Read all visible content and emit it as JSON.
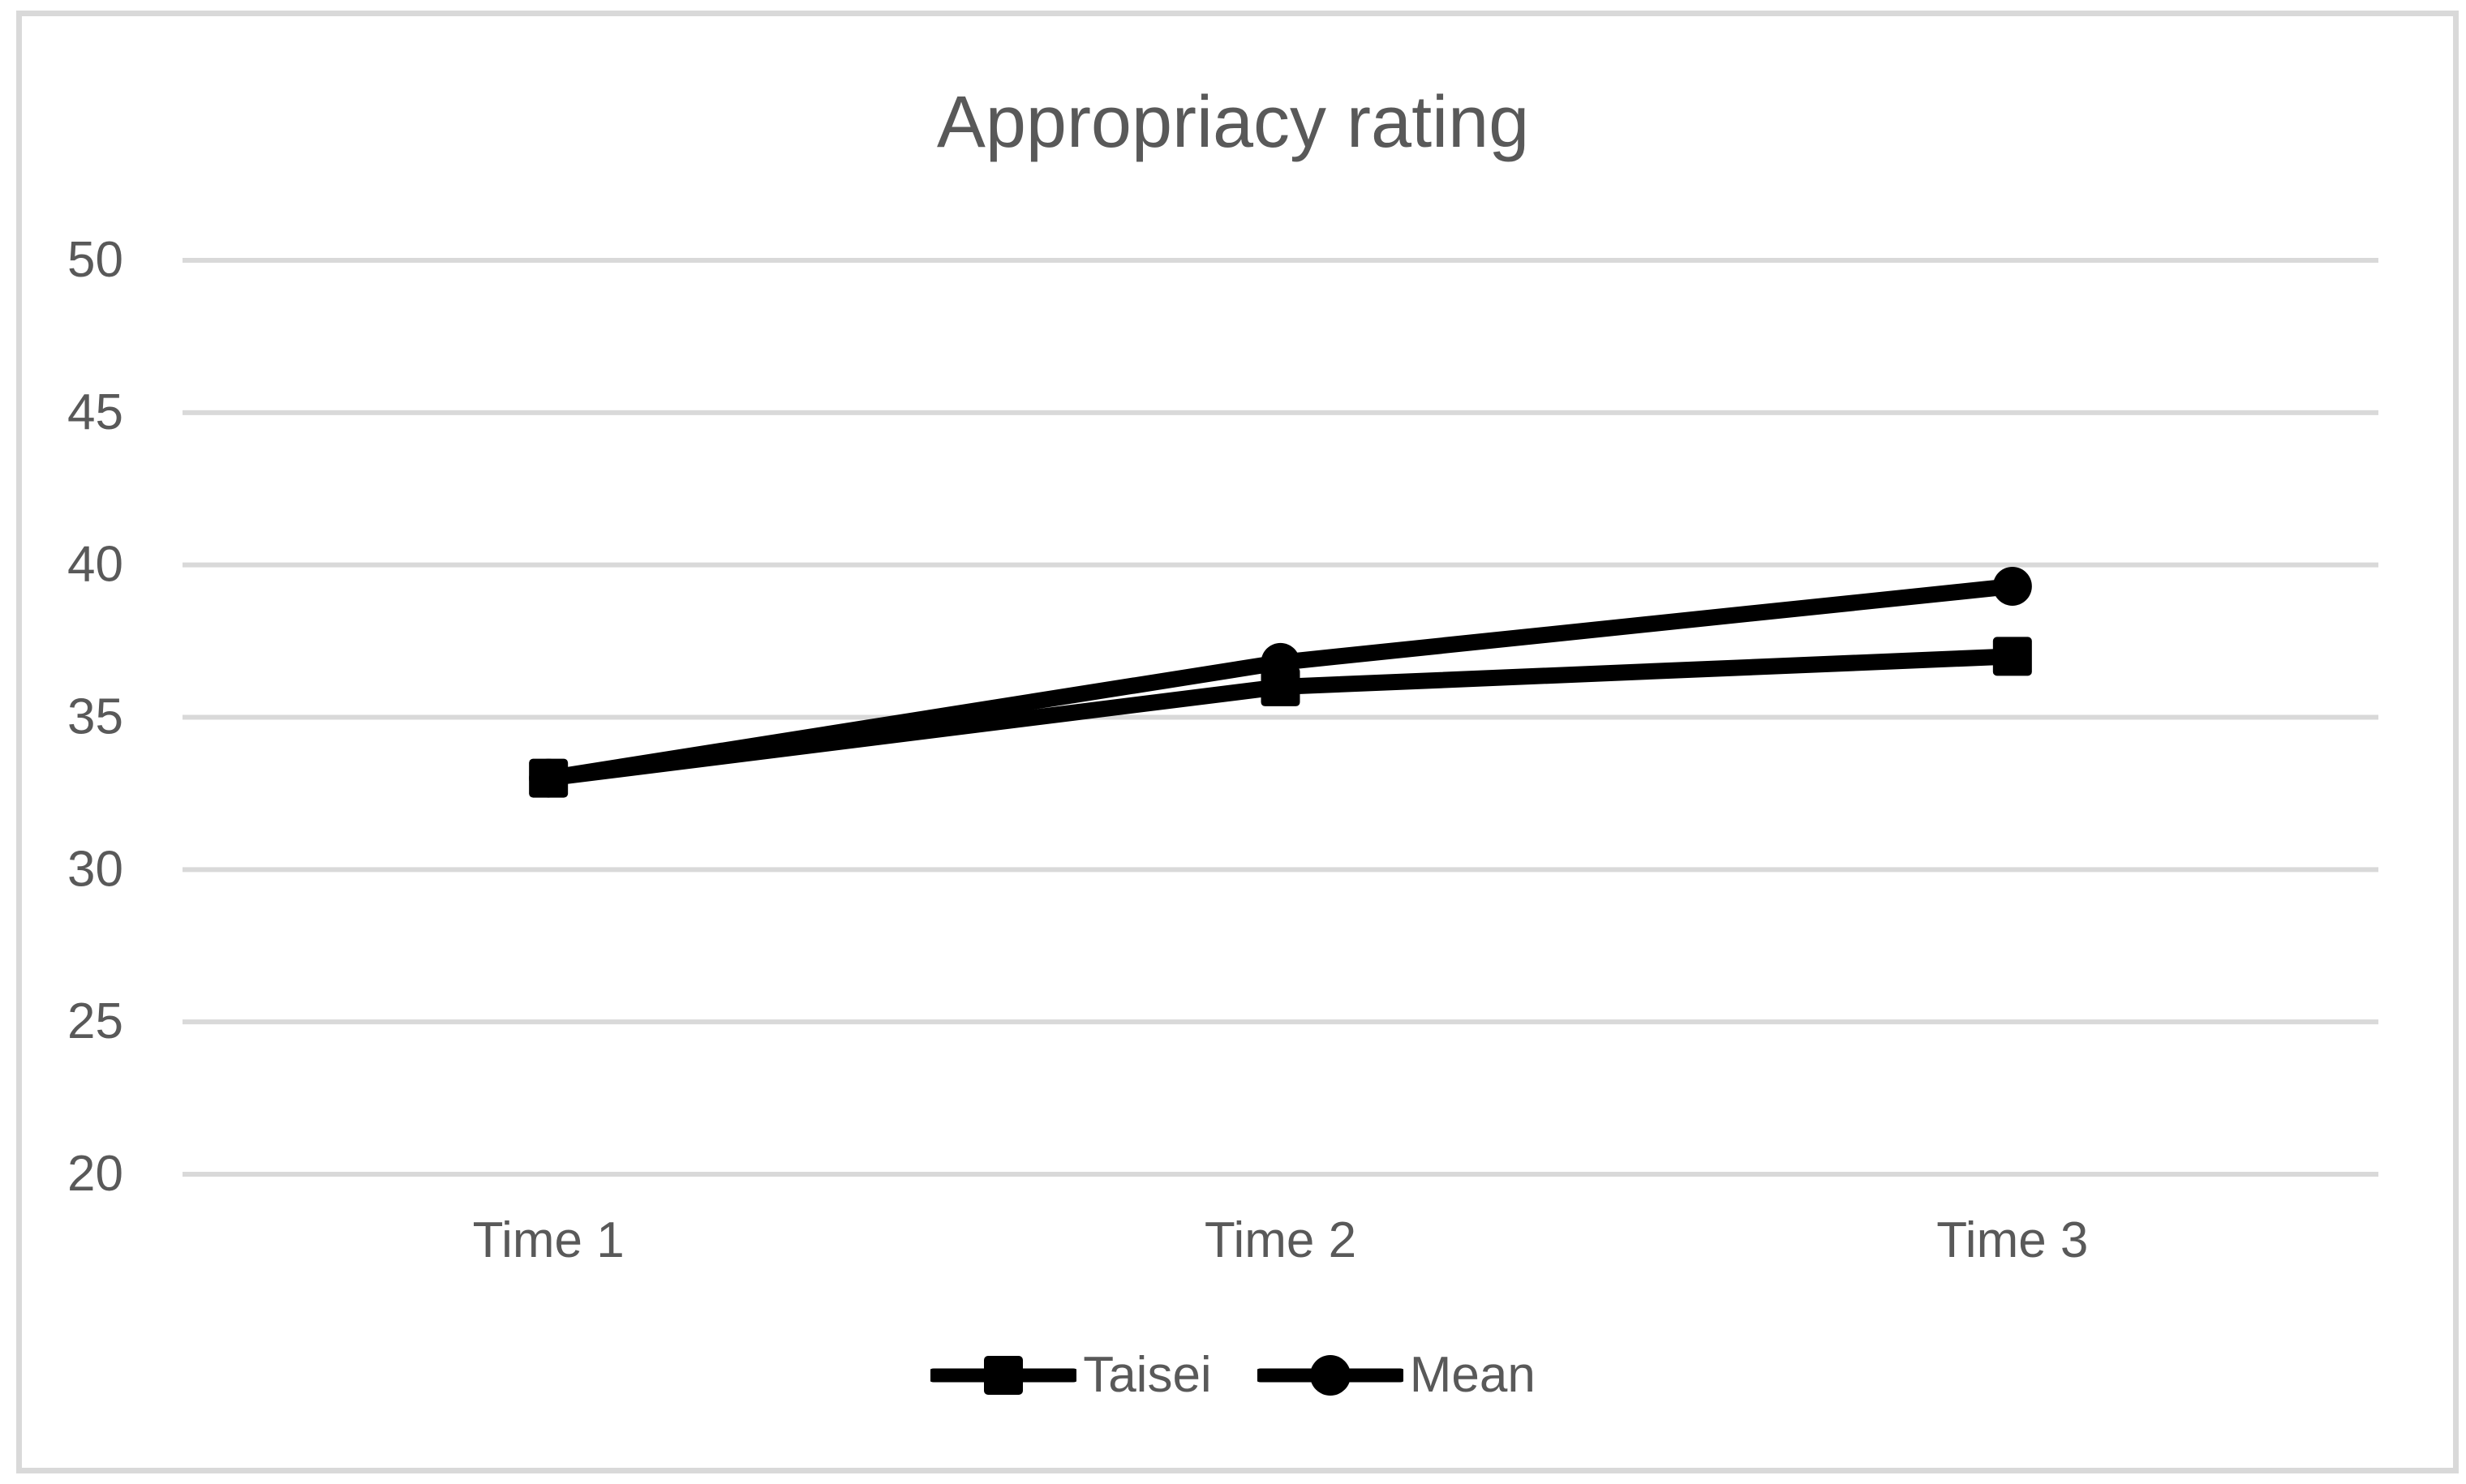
{
  "figure": {
    "background_color": "#FFFFFF",
    "border_color": "#D9D9D9"
  },
  "chart_data": {
    "type": "line",
    "title": "Appropriacy rating",
    "categories": [
      "Time 1",
      "Time 2",
      "Time 3"
    ],
    "series": [
      {
        "name": "Taisei",
        "marker": "square",
        "color": "#000000",
        "values": [
          33,
          36,
          37
        ]
      },
      {
        "name": "Mean",
        "marker": "circle",
        "color": "#000000",
        "values": [
          33,
          36.8,
          39.3
        ]
      }
    ],
    "xlabel": "",
    "ylabel": "",
    "ylim": [
      20,
      50
    ],
    "yticks": [
      50,
      45,
      40,
      35,
      30,
      25,
      20
    ],
    "grid": true,
    "gridline_color": "#D9D9D9",
    "text_color": "#595959",
    "legend_position": "bottom-center"
  }
}
